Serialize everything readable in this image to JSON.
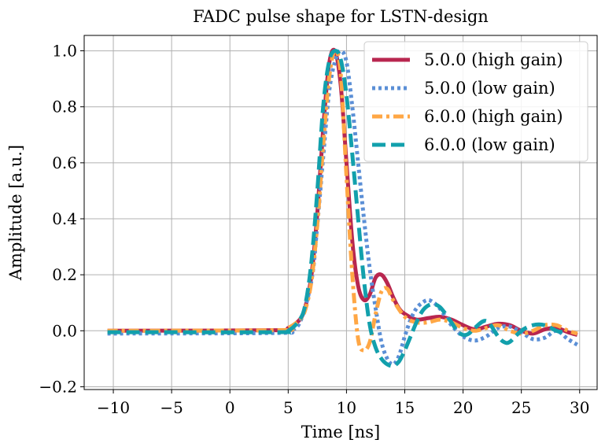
{
  "chart_data": {
    "type": "line",
    "title": "FADC pulse shape for LSTN-design",
    "xlabel": "Time [ns]",
    "ylabel": "Amplitude [a.u.]",
    "xlim": [
      -12.5,
      31.5
    ],
    "ylim": [
      -0.21,
      1.055
    ],
    "xticks": [
      -10,
      -5,
      0,
      5,
      10,
      15,
      20,
      25,
      30
    ],
    "xtick_labels": [
      "−10",
      "−5",
      "0",
      "5",
      "10",
      "15",
      "20",
      "25",
      "30"
    ],
    "yticks": [
      -0.2,
      0.0,
      0.2,
      0.4,
      0.6,
      0.8,
      1.0
    ],
    "ytick_labels": [
      "−0.2",
      "0.0",
      "0.2",
      "0.4",
      "0.6",
      "0.8",
      "1.0"
    ],
    "grid": true,
    "legend_position": "top-right",
    "series": [
      {
        "name": "5.0.0 (high gain)",
        "color": "#b8264f",
        "style": "solid",
        "x": [
          -10.5,
          4.0,
          5.0,
          6.0,
          6.5,
          7.0,
          7.5,
          8.0,
          8.5,
          9.0,
          9.5,
          10.0,
          10.5,
          11.0,
          11.5,
          12.0,
          12.5,
          13.0,
          13.5,
          14.0,
          14.5,
          15.0,
          16.0,
          17.0,
          18.0,
          19.0,
          20.0,
          21.0,
          22.0,
          23.0,
          24.0,
          25.0,
          26.0,
          27.0,
          28.0,
          29.0,
          29.8
        ],
        "y": [
          0.0,
          0.002,
          0.01,
          0.04,
          0.09,
          0.2,
          0.42,
          0.72,
          0.95,
          1.0,
          0.88,
          0.6,
          0.32,
          0.16,
          0.11,
          0.13,
          0.19,
          0.2,
          0.17,
          0.12,
          0.08,
          0.06,
          0.04,
          0.045,
          0.05,
          0.04,
          0.02,
          0.005,
          0.015,
          0.025,
          0.02,
          0.0,
          -0.01,
          0.005,
          0.01,
          -0.005,
          -0.015
        ]
      },
      {
        "name": "5.0.0 (low gain)",
        "color": "#5b8fd6",
        "style": "dotted",
        "x": [
          -10.5,
          4.0,
          5.0,
          6.0,
          7.0,
          7.5,
          8.0,
          8.5,
          9.0,
          9.5,
          10.0,
          10.5,
          11.0,
          11.5,
          12.0,
          12.5,
          13.0,
          13.5,
          14.0,
          14.5,
          15.0,
          15.5,
          16.0,
          16.5,
          17.0,
          17.5,
          18.0,
          18.5,
          19.0,
          20.0,
          21.0,
          22.0,
          23.0,
          24.0,
          25.0,
          26.0,
          27.0,
          28.0,
          29.0,
          29.8
        ],
        "y": [
          -0.01,
          -0.008,
          0.0,
          0.03,
          0.18,
          0.38,
          0.62,
          0.85,
          0.96,
          1.0,
          0.96,
          0.8,
          0.6,
          0.4,
          0.22,
          0.08,
          -0.04,
          -0.1,
          -0.12,
          -0.09,
          -0.02,
          0.04,
          0.08,
          0.1,
          0.11,
          0.1,
          0.08,
          0.05,
          0.02,
          -0.02,
          -0.035,
          -0.02,
          0.01,
          0.015,
          -0.005,
          -0.03,
          -0.025,
          0.0,
          -0.03,
          -0.05
        ]
      },
      {
        "name": "6.0.0 (high gain)",
        "color": "#ffa745",
        "style": "dashdot",
        "x": [
          -10.5,
          4.0,
          5.0,
          6.0,
          6.5,
          7.0,
          7.5,
          8.0,
          8.5,
          9.0,
          9.5,
          10.0,
          10.5,
          11.0,
          11.5,
          12.0,
          12.5,
          13.0,
          13.5,
          14.0,
          15.0,
          16.0,
          17.0,
          18.0,
          19.0,
          20.0,
          21.0,
          22.0,
          23.0,
          24.0,
          25.0,
          26.0,
          27.0,
          28.0,
          29.0,
          29.8
        ],
        "y": [
          0.0,
          0.002,
          0.01,
          0.04,
          0.08,
          0.18,
          0.38,
          0.66,
          0.9,
          1.0,
          0.92,
          0.55,
          0.2,
          -0.03,
          -0.07,
          -0.04,
          0.06,
          0.14,
          0.15,
          0.11,
          0.05,
          0.03,
          0.03,
          0.04,
          0.03,
          0.01,
          0.0,
          0.01,
          0.02,
          0.0,
          -0.01,
          0.0,
          0.02,
          0.02,
          0.0,
          -0.01
        ]
      },
      {
        "name": "6.0.0 (low gain)",
        "color": "#12a0ac",
        "style": "dashed",
        "x": [
          -10.5,
          4.0,
          5.0,
          6.0,
          6.5,
          7.0,
          7.5,
          8.0,
          8.5,
          9.0,
          9.5,
          10.0,
          10.5,
          11.0,
          11.5,
          12.0,
          12.5,
          13.0,
          13.5,
          14.0,
          14.5,
          15.0,
          15.5,
          16.0,
          16.5,
          17.0,
          17.5,
          18.0,
          18.5,
          19.0,
          19.5,
          20.0,
          20.5,
          21.0,
          22.0,
          23.0,
          23.5,
          24.0,
          25.0,
          26.0,
          27.0,
          28.0,
          28.5
        ],
        "y": [
          -0.005,
          -0.005,
          0.0,
          0.04,
          0.1,
          0.25,
          0.5,
          0.8,
          0.96,
          1.0,
          0.97,
          0.84,
          0.63,
          0.4,
          0.18,
          0.02,
          -0.06,
          -0.1,
          -0.12,
          -0.125,
          -0.11,
          -0.07,
          -0.02,
          0.03,
          0.07,
          0.09,
          0.095,
          0.085,
          0.06,
          0.03,
          0.0,
          -0.015,
          -0.01,
          0.01,
          0.035,
          -0.02,
          -0.04,
          -0.04,
          0.0,
          0.02,
          0.02,
          0.0,
          -0.005
        ]
      }
    ]
  }
}
